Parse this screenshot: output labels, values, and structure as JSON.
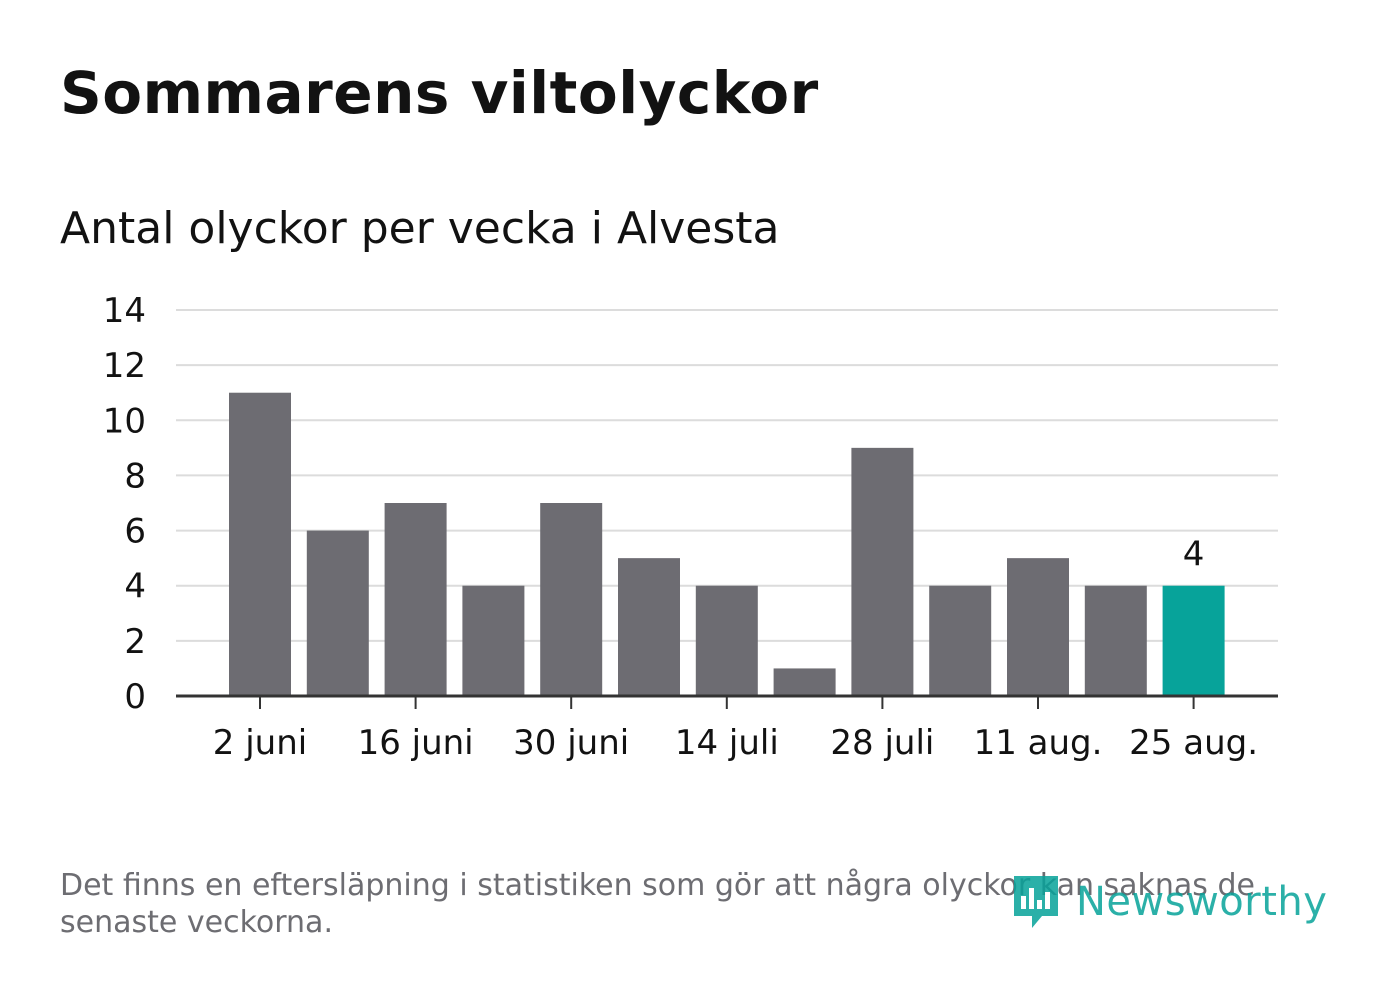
{
  "title": "Sommarens viltolyckor",
  "subtitle": "Antal olyckor per vecka i Alvesta",
  "footnote": "Det finns en eftersläpning i statistiken som gör att några olyckor kan saknas de senaste veckorna.",
  "logo": {
    "text": "Newsworthy",
    "icon": "newsworthy-logo-icon",
    "color": "#07a39a"
  },
  "colors": {
    "bar": "#6d6c72",
    "highlight": "#07a39a",
    "grid": "#dcdcdc",
    "axis": "#333333",
    "text": "#121212"
  },
  "chart_data": {
    "type": "bar",
    "title": "Sommarens viltolyckor",
    "subtitle": "Antal olyckor per vecka i Alvesta",
    "xlabel": "",
    "ylabel": "",
    "x_tick_labels": [
      "2 juni",
      "16 juni",
      "30 juni",
      "14 juli",
      "28 juli",
      "11 aug.",
      "25 aug."
    ],
    "values": [
      11,
      6,
      7,
      4,
      7,
      5,
      4,
      1,
      9,
      4,
      5,
      4,
      4
    ],
    "highlight_index": 12,
    "highlight_label": "4",
    "ylim": [
      0,
      14
    ],
    "yticks": [
      0,
      2,
      4,
      6,
      8,
      10,
      12,
      14
    ],
    "grid": true,
    "legend": "none"
  }
}
